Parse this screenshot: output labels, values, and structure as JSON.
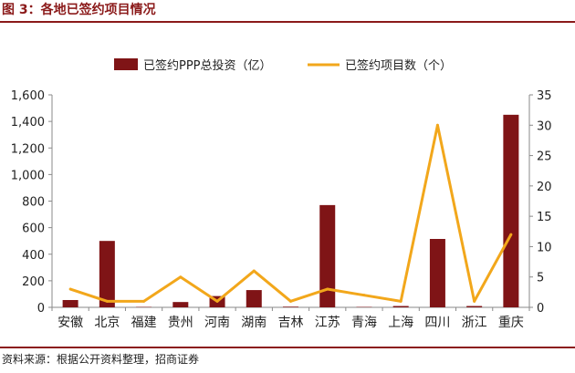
{
  "header": {
    "title": "图 3：各地已签约项目情况"
  },
  "footer": {
    "source": "资料来源：根据公开资料整理，招商证券"
  },
  "chart_data": {
    "type": "bar",
    "categories": [
      "安徽",
      "北京",
      "福建",
      "贵州",
      "河南",
      "湖南",
      "吉林",
      "江苏",
      "青海",
      "上海",
      "四川",
      "浙江",
      "重庆"
    ],
    "series": [
      {
        "name": "已签约PPP总投资（亿）",
        "type": "bar",
        "axis": "left",
        "color": "#7f1416",
        "values": [
          55,
          500,
          3,
          40,
          85,
          130,
          5,
          770,
          3,
          10,
          515,
          10,
          1450
        ]
      },
      {
        "name": "已签约项目数（个）",
        "type": "line",
        "axis": "right",
        "color": "#f2a71b",
        "values": [
          3,
          1,
          1,
          5,
          1,
          6,
          1,
          3,
          2,
          1,
          30,
          1,
          12
        ]
      }
    ],
    "y_left": {
      "ylim": [
        0,
        1600
      ],
      "ticks": [
        0,
        200,
        400,
        600,
        800,
        1000,
        1200,
        1400,
        1600
      ],
      "tick_labels": [
        "0",
        "200",
        "400",
        "600",
        "800",
        "1,000",
        "1,200",
        "1,400",
        "1,600"
      ]
    },
    "y_right": {
      "ylim": [
        0,
        35
      ],
      "ticks": [
        0,
        5,
        10,
        15,
        20,
        25,
        30,
        35
      ],
      "tick_labels": [
        "0",
        "5",
        "10",
        "15",
        "20",
        "25",
        "30",
        "35"
      ]
    },
    "legend_position": "top-center",
    "grid": false
  }
}
